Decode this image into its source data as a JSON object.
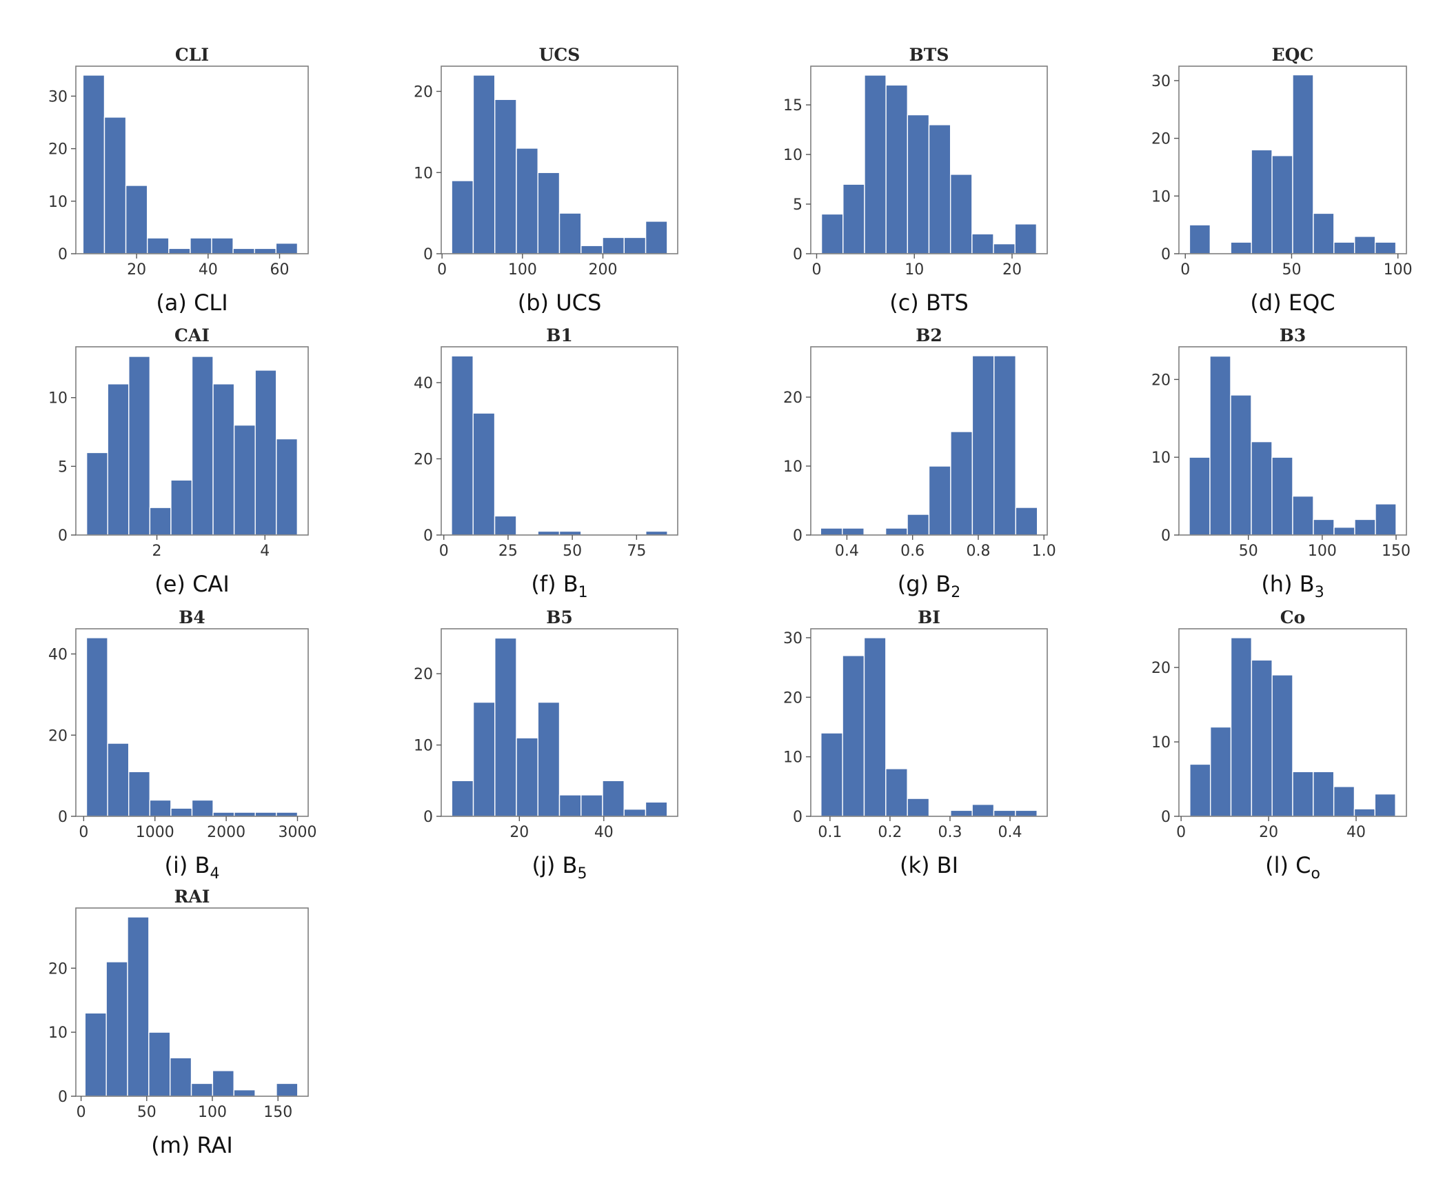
{
  "figure": {
    "bar_color": "#4c72b0",
    "background": "#ffffff"
  },
  "chart_data": [
    {
      "type": "bar",
      "title": "CLI",
      "caption": {
        "prefix": "(a) ",
        "main": "CLI",
        "sub": ""
      },
      "bin_edges": [
        5,
        11,
        17,
        23,
        29,
        35,
        41,
        47,
        53,
        59,
        65
      ],
      "values": [
        34,
        26,
        13,
        3,
        1,
        3,
        3,
        1,
        1,
        2
      ],
      "xlim": [
        3,
        68
      ],
      "ylim": [
        0,
        35.7
      ],
      "xticks": [
        {
          "v": 20,
          "l": "20"
        },
        {
          "v": 40,
          "l": "40"
        },
        {
          "v": 60,
          "l": "60"
        }
      ],
      "yticks": [
        {
          "v": 0,
          "l": "0"
        },
        {
          "v": 10,
          "l": "10"
        },
        {
          "v": 20,
          "l": "20"
        },
        {
          "v": 30,
          "l": "30"
        }
      ]
    },
    {
      "type": "bar",
      "title": "UCS",
      "caption": {
        "prefix": "(b) ",
        "main": "UCS",
        "sub": ""
      },
      "bin_edges": [
        12,
        38.8,
        65.6,
        92.4,
        119.2,
        146,
        172.8,
        199.6,
        226.4,
        253.2,
        280
      ],
      "values": [
        9,
        22,
        19,
        13,
        10,
        5,
        1,
        2,
        2,
        4
      ],
      "xlim": [
        -1,
        293
      ],
      "ylim": [
        0,
        23.1
      ],
      "xticks": [
        {
          "v": 0,
          "l": "0"
        },
        {
          "v": 100,
          "l": "100"
        },
        {
          "v": 200,
          "l": "200"
        }
      ],
      "yticks": [
        {
          "v": 0,
          "l": "0"
        },
        {
          "v": 10,
          "l": "10"
        },
        {
          "v": 20,
          "l": "20"
        }
      ]
    },
    {
      "type": "bar",
      "title": "BTS",
      "caption": {
        "prefix": "(c) ",
        "main": "BTS",
        "sub": ""
      },
      "bin_edges": [
        0.5,
        2.7,
        4.9,
        7.1,
        9.3,
        11.5,
        13.7,
        15.9,
        18.1,
        20.3,
        22.5
      ],
      "values": [
        4,
        7,
        18,
        17,
        14,
        13,
        8,
        2,
        1,
        3
      ],
      "xlim": [
        -0.6,
        23.6
      ],
      "ylim": [
        0,
        18.9
      ],
      "xticks": [
        {
          "v": 0,
          "l": "0"
        },
        {
          "v": 10,
          "l": "10"
        },
        {
          "v": 20,
          "l": "20"
        }
      ],
      "yticks": [
        {
          "v": 0,
          "l": "0"
        },
        {
          "v": 5,
          "l": "5"
        },
        {
          "v": 10,
          "l": "10"
        },
        {
          "v": 15,
          "l": "15"
        }
      ]
    },
    {
      "type": "bar",
      "title": "EQC",
      "caption": {
        "prefix": "(d) ",
        "main": "EQC",
        "sub": ""
      },
      "bin_edges": [
        2,
        11.7,
        21.4,
        31.1,
        40.8,
        50.5,
        60.2,
        69.9,
        79.6,
        89.3,
        99
      ],
      "values": [
        5,
        0,
        2,
        18,
        17,
        31,
        7,
        2,
        3,
        2
      ],
      "xlim": [
        -3,
        104
      ],
      "ylim": [
        0,
        32.5
      ],
      "xticks": [
        {
          "v": 0,
          "l": "0"
        },
        {
          "v": 50,
          "l": "50"
        },
        {
          "v": 100,
          "l": "100"
        }
      ],
      "yticks": [
        {
          "v": 0,
          "l": "0"
        },
        {
          "v": 10,
          "l": "10"
        },
        {
          "v": 20,
          "l": "20"
        },
        {
          "v": 30,
          "l": "30"
        }
      ]
    },
    {
      "type": "bar",
      "title": "CAI",
      "caption": {
        "prefix": "(e) ",
        "main": "CAI",
        "sub": ""
      },
      "bin_edges": [
        0.7,
        1.09,
        1.48,
        1.87,
        2.26,
        2.65,
        3.04,
        3.43,
        3.82,
        4.21,
        4.6
      ],
      "values": [
        6,
        11,
        13,
        2,
        4,
        13,
        11,
        8,
        12,
        7
      ],
      "xlim": [
        0.5,
        4.8
      ],
      "ylim": [
        0,
        13.7
      ],
      "xticks": [
        {
          "v": 2,
          "l": "2"
        },
        {
          "v": 4,
          "l": "4"
        }
      ],
      "yticks": [
        {
          "v": 0,
          "l": "0"
        },
        {
          "v": 5,
          "l": "5"
        },
        {
          "v": 10,
          "l": "10"
        }
      ]
    },
    {
      "type": "bar",
      "title": "B1",
      "caption": {
        "prefix": "(f) ",
        "main": "B",
        "sub": "1"
      },
      "bin_edges": [
        3,
        11.4,
        19.8,
        28.2,
        36.6,
        45,
        53.4,
        61.8,
        70.2,
        78.6,
        87
      ],
      "values": [
        47,
        32,
        5,
        0,
        1,
        1,
        0,
        0,
        0,
        1
      ],
      "xlim": [
        -1,
        91
      ],
      "ylim": [
        0,
        49.4
      ],
      "xticks": [
        {
          "v": 0,
          "l": "0"
        },
        {
          "v": 25,
          "l": "25"
        },
        {
          "v": 50,
          "l": "50"
        },
        {
          "v": 75,
          "l": "75"
        }
      ],
      "yticks": [
        {
          "v": 0,
          "l": "0"
        },
        {
          "v": 20,
          "l": "20"
        },
        {
          "v": 40,
          "l": "40"
        }
      ]
    },
    {
      "type": "bar",
      "title": "B2",
      "caption": {
        "prefix": "(g) ",
        "main": "B",
        "sub": "2"
      },
      "bin_edges": [
        0.32,
        0.386,
        0.452,
        0.518,
        0.584,
        0.65,
        0.716,
        0.782,
        0.848,
        0.914,
        0.98
      ],
      "values": [
        1,
        1,
        0,
        1,
        3,
        10,
        15,
        26,
        26,
        4
      ],
      "xlim": [
        0.29,
        1.01
      ],
      "ylim": [
        0,
        27.3
      ],
      "xticks": [
        {
          "v": 0.4,
          "l": "0.4"
        },
        {
          "v": 0.6,
          "l": "0.6"
        },
        {
          "v": 0.8,
          "l": "0.8"
        },
        {
          "v": 1.0,
          "l": "1.0"
        }
      ],
      "yticks": [
        {
          "v": 0,
          "l": "0"
        },
        {
          "v": 10,
          "l": "10"
        },
        {
          "v": 20,
          "l": "20"
        }
      ]
    },
    {
      "type": "bar",
      "title": "B3",
      "caption": {
        "prefix": "(h) ",
        "main": "B",
        "sub": "3"
      },
      "bin_edges": [
        10,
        24,
        38,
        52,
        66,
        80,
        94,
        108,
        122,
        136,
        150
      ],
      "values": [
        10,
        23,
        18,
        12,
        10,
        5,
        2,
        1,
        2,
        4
      ],
      "xlim": [
        3,
        157
      ],
      "ylim": [
        0,
        24.2
      ],
      "xticks": [
        {
          "v": 50,
          "l": "50"
        },
        {
          "v": 100,
          "l": "100"
        },
        {
          "v": 150,
          "l": "150"
        }
      ],
      "yticks": [
        {
          "v": 0,
          "l": "0"
        },
        {
          "v": 10,
          "l": "10"
        },
        {
          "v": 20,
          "l": "20"
        }
      ]
    },
    {
      "type": "bar",
      "title": "B4",
      "caption": {
        "prefix": "(i) ",
        "main": "B",
        "sub": "4"
      },
      "bin_edges": [
        40,
        336,
        632,
        928,
        1224,
        1520,
        1816,
        2112,
        2408,
        2704,
        3000
      ],
      "values": [
        44,
        18,
        11,
        4,
        2,
        4,
        1,
        1,
        1,
        1
      ],
      "xlim": [
        -110,
        3150
      ],
      "ylim": [
        0,
        46.2
      ],
      "xticks": [
        {
          "v": 0,
          "l": "0"
        },
        {
          "v": 1000,
          "l": "1000"
        },
        {
          "v": 2000,
          "l": "2000"
        },
        {
          "v": 3000,
          "l": "3000"
        }
      ],
      "yticks": [
        {
          "v": 0,
          "l": "0"
        },
        {
          "v": 20,
          "l": "20"
        },
        {
          "v": 40,
          "l": "40"
        }
      ]
    },
    {
      "type": "bar",
      "title": "B5",
      "caption": {
        "prefix": "(j) ",
        "main": "B",
        "sub": "5"
      },
      "bin_edges": [
        4,
        9.1,
        14.2,
        19.3,
        24.4,
        29.5,
        34.6,
        39.7,
        44.8,
        49.9,
        55
      ],
      "values": [
        5,
        16,
        25,
        11,
        16,
        3,
        3,
        5,
        1,
        2
      ],
      "xlim": [
        1.5,
        57.5
      ],
      "ylim": [
        0,
        26.3
      ],
      "xticks": [
        {
          "v": 20,
          "l": "20"
        },
        {
          "v": 40,
          "l": "40"
        }
      ],
      "yticks": [
        {
          "v": 0,
          "l": "0"
        },
        {
          "v": 10,
          "l": "10"
        },
        {
          "v": 20,
          "l": "20"
        }
      ]
    },
    {
      "type": "bar",
      "title": "BI",
      "caption": {
        "prefix": "(k) ",
        "main": "BI",
        "sub": ""
      },
      "bin_edges": [
        0.085,
        0.121,
        0.157,
        0.193,
        0.229,
        0.265,
        0.301,
        0.337,
        0.373,
        0.409,
        0.445
      ],
      "values": [
        14,
        27,
        30,
        8,
        3,
        0,
        1,
        2,
        1,
        1
      ],
      "xlim": [
        0.068,
        0.462
      ],
      "ylim": [
        0,
        31.5
      ],
      "xticks": [
        {
          "v": 0.1,
          "l": "0.1"
        },
        {
          "v": 0.2,
          "l": "0.2"
        },
        {
          "v": 0.3,
          "l": "0.3"
        },
        {
          "v": 0.4,
          "l": "0.4"
        }
      ],
      "yticks": [
        {
          "v": 0,
          "l": "0"
        },
        {
          "v": 10,
          "l": "10"
        },
        {
          "v": 20,
          "l": "20"
        },
        {
          "v": 30,
          "l": "30"
        }
      ]
    },
    {
      "type": "bar",
      "title": "Co",
      "caption": {
        "prefix": "(l) ",
        "main": "C",
        "sub": "o"
      },
      "bin_edges": [
        2,
        6.7,
        11.4,
        16.1,
        20.8,
        25.5,
        30.2,
        34.9,
        39.6,
        44.3,
        49
      ],
      "values": [
        7,
        12,
        24,
        21,
        19,
        6,
        6,
        4,
        1,
        3
      ],
      "xlim": [
        -0.5,
        51.5
      ],
      "ylim": [
        0,
        25.2
      ],
      "xticks": [
        {
          "v": 0,
          "l": "0"
        },
        {
          "v": 20,
          "l": "20"
        },
        {
          "v": 40,
          "l": "40"
        }
      ],
      "yticks": [
        {
          "v": 0,
          "l": "0"
        },
        {
          "v": 10,
          "l": "10"
        },
        {
          "v": 20,
          "l": "20"
        }
      ]
    },
    {
      "type": "bar",
      "title": "RAI",
      "caption": {
        "prefix": "(m) ",
        "main": "RAI",
        "sub": ""
      },
      "bin_edges": [
        3,
        19.2,
        35.4,
        51.6,
        67.8,
        84,
        100.2,
        116.4,
        132.6,
        148.8,
        165
      ],
      "values": [
        13,
        21,
        28,
        10,
        6,
        2,
        4,
        1,
        0,
        2
      ],
      "xlim": [
        -4,
        173
      ],
      "ylim": [
        0,
        29.4
      ],
      "xticks": [
        {
          "v": 0,
          "l": "0"
        },
        {
          "v": 50,
          "l": "50"
        },
        {
          "v": 100,
          "l": "100"
        },
        {
          "v": 150,
          "l": "150"
        }
      ],
      "yticks": [
        {
          "v": 0,
          "l": "0"
        },
        {
          "v": 10,
          "l": "10"
        },
        {
          "v": 20,
          "l": "20"
        }
      ]
    }
  ]
}
